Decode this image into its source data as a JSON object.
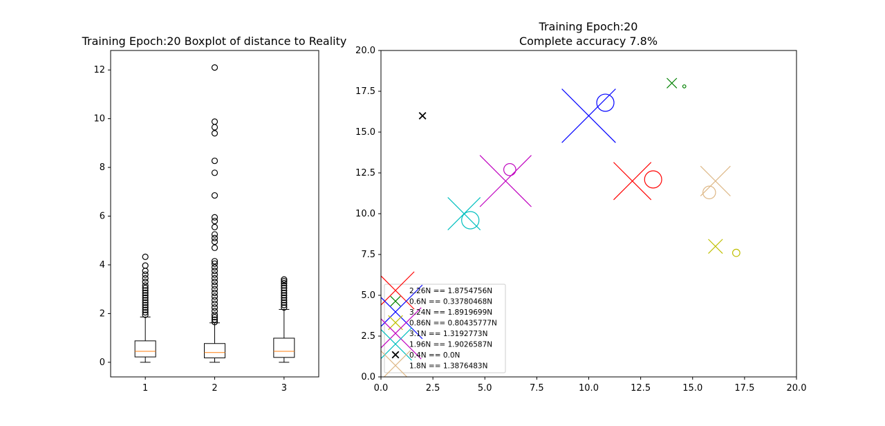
{
  "chart_data": [
    {
      "type": "boxplot",
      "title": "Training Epoch:20 Boxplot of distance to Reality",
      "xlabel": "",
      "ylabel": "",
      "categories": [
        "1",
        "2",
        "3"
      ],
      "ylim": [
        -0.6,
        12.8
      ],
      "yticks": [
        0,
        2,
        4,
        6,
        8,
        10,
        12
      ],
      "grid": false,
      "boxes": [
        {
          "category": "1",
          "whisker_low": 0.0,
          "q1": 0.22,
          "median": 0.45,
          "q3": 0.88,
          "whisker_high": 1.86,
          "outliers": [
            1.95,
            2.05,
            2.15,
            2.25,
            2.35,
            2.45,
            2.55,
            2.65,
            2.75,
            2.85,
            2.95,
            3.05,
            3.15,
            3.3,
            3.45,
            3.6,
            3.75,
            3.97,
            4.33
          ]
        },
        {
          "category": "2",
          "whisker_low": 0.0,
          "q1": 0.18,
          "median": 0.4,
          "q3": 0.77,
          "whisker_high": 1.62,
          "outliers": [
            1.65,
            1.75,
            1.85,
            1.95,
            2.1,
            2.25,
            2.4,
            2.55,
            2.7,
            2.85,
            3.0,
            3.15,
            3.3,
            3.45,
            3.6,
            3.75,
            3.9,
            4.05,
            4.15,
            4.7,
            4.95,
            5.1,
            5.25,
            5.55,
            5.8,
            5.95,
            6.85,
            7.78,
            8.27,
            9.4,
            9.65,
            9.88,
            12.1
          ]
        },
        {
          "category": "3",
          "whisker_low": 0.0,
          "q1": 0.2,
          "median": 0.45,
          "q3": 0.99,
          "whisker_high": 2.17,
          "outliers": [
            2.25,
            2.35,
            2.45,
            2.55,
            2.65,
            2.75,
            2.85,
            2.95,
            3.05,
            3.15,
            3.25,
            3.33,
            3.4
          ]
        }
      ]
    },
    {
      "type": "scatter",
      "title": "Training Epoch:20",
      "subtitle": "Complete accuracy 7.8%",
      "xlabel": "",
      "ylabel": "",
      "xlim": [
        0,
        20
      ],
      "ylim": [
        0,
        20
      ],
      "xticks": [
        "0.0",
        "2.5",
        "5.0",
        "7.5",
        "10.0",
        "12.5",
        "15.0",
        "17.5",
        "20.0"
      ],
      "yticks": [
        "0.0",
        "2.5",
        "5.0",
        "7.5",
        "10.0",
        "12.5",
        "15.0",
        "17.5",
        "20.0"
      ],
      "grid": false,
      "legend_position": "lower-left",
      "series": [
        {
          "name": "2.26N == 1.8754756N",
          "color": "#ff0000",
          "x_point": [
            12.1,
            12.0
          ],
          "x_size": 2.26,
          "o_point": [
            13.1,
            12.1
          ],
          "o_size": 1.88
        },
        {
          "name": "0.6N == 0.33780468N",
          "color": "#008000",
          "x_point": [
            14.0,
            18.0
          ],
          "x_size": 0.6,
          "o_point": [
            14.6,
            17.8
          ],
          "o_size": 0.34
        },
        {
          "name": "3.24N == 1.8919699N",
          "color": "#0000ff",
          "x_point": [
            10.0,
            16.0
          ],
          "x_size": 3.24,
          "o_point": [
            10.8,
            16.8
          ],
          "o_size": 1.89
        },
        {
          "name": "0.86N == 0.80435777N",
          "color": "#bfbf00",
          "x_point": [
            16.1,
            8.0
          ],
          "x_size": 0.86,
          "o_point": [
            17.1,
            7.6
          ],
          "o_size": 0.8
        },
        {
          "name": "3.1N == 1.3192773N",
          "color": "#bf00bf",
          "x_point": [
            6.0,
            12.0
          ],
          "x_size": 3.1,
          "o_point": [
            6.2,
            12.7
          ],
          "o_size": 1.32
        },
        {
          "name": "1.96N == 1.9026587N",
          "color": "#00bfbf",
          "x_point": [
            4.0,
            10.0
          ],
          "x_size": 1.96,
          "o_point": [
            4.3,
            9.6
          ],
          "o_size": 1.9
        },
        {
          "name": "0.4N == 0.0N",
          "color": "#000000",
          "x_point": [
            2.0,
            16.0
          ],
          "x_size": 0.4,
          "o_point": null,
          "o_size": 0.0
        },
        {
          "name": "1.8N == 1.3876483N",
          "color": "#deb887",
          "x_point": [
            16.1,
            12.0
          ],
          "x_size": 1.8,
          "o_point": [
            15.8,
            11.3
          ],
          "o_size": 1.39
        }
      ]
    }
  ]
}
